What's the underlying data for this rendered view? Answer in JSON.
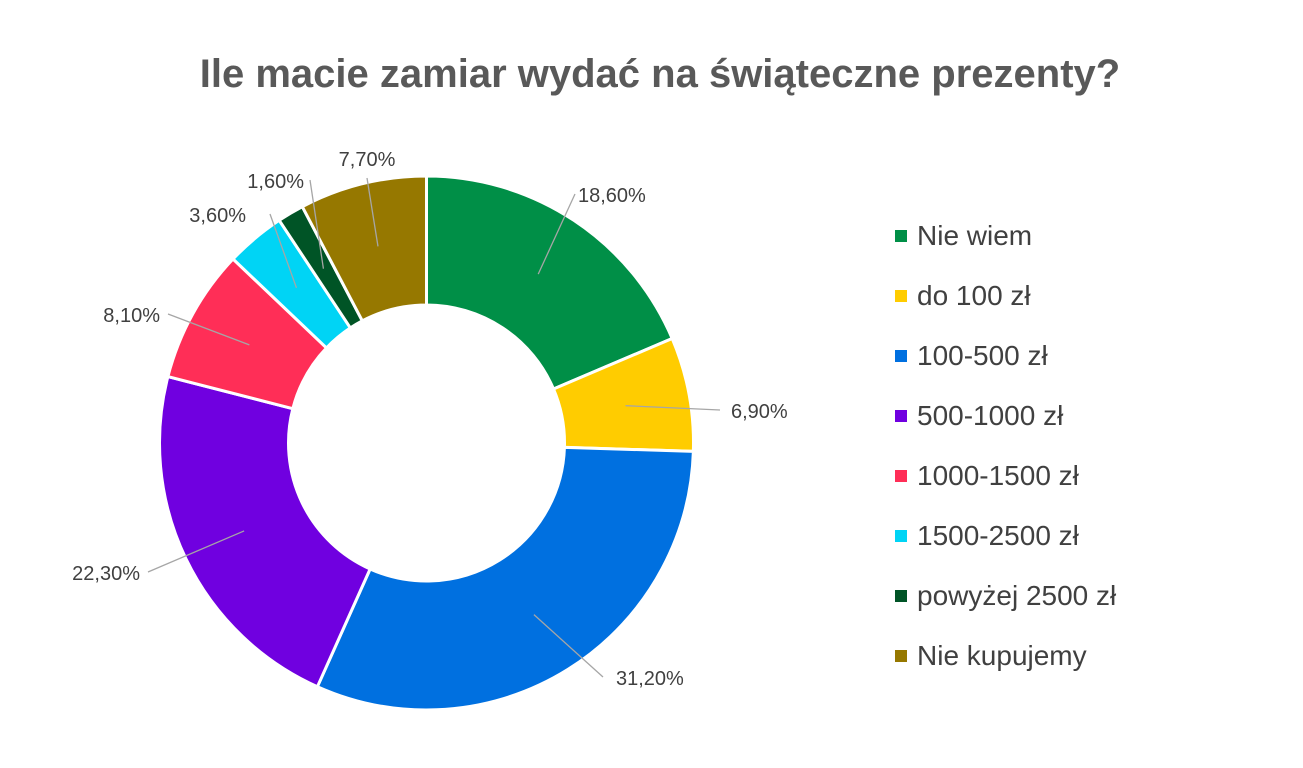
{
  "chart_data": {
    "type": "pie",
    "donut": true,
    "title": "Ile macie zamiar wydać na świąteczne prezenty?",
    "legend_position": "right",
    "unit": "%",
    "slices": [
      {
        "name": "Nie wiem",
        "value": 18.6,
        "label": "18,60%",
        "color": "#008f47"
      },
      {
        "name": "do 100 zł",
        "value": 6.9,
        "label": "6,90%",
        "color": "#ffcc00"
      },
      {
        "name": "100-500 zł",
        "value": 31.2,
        "label": "31,20%",
        "color": "#0070e0"
      },
      {
        "name": "500-1000 zł",
        "value": 22.3,
        "label": "22,30%",
        "color": "#7000e0"
      },
      {
        "name": "1000-1500 zł",
        "value": 8.1,
        "label": "8,10%",
        "color": "#ff2e57"
      },
      {
        "name": "1500-2500 zł",
        "value": 3.6,
        "label": "3,60%",
        "color": "#00d4f5"
      },
      {
        "name": "powyżej 2500 zł",
        "value": 1.6,
        "label": "1,60%",
        "color": "#005426"
      },
      {
        "name": "Nie kupujemy",
        "value": 7.7,
        "label": "7,70%",
        "color": "#967800"
      }
    ]
  }
}
